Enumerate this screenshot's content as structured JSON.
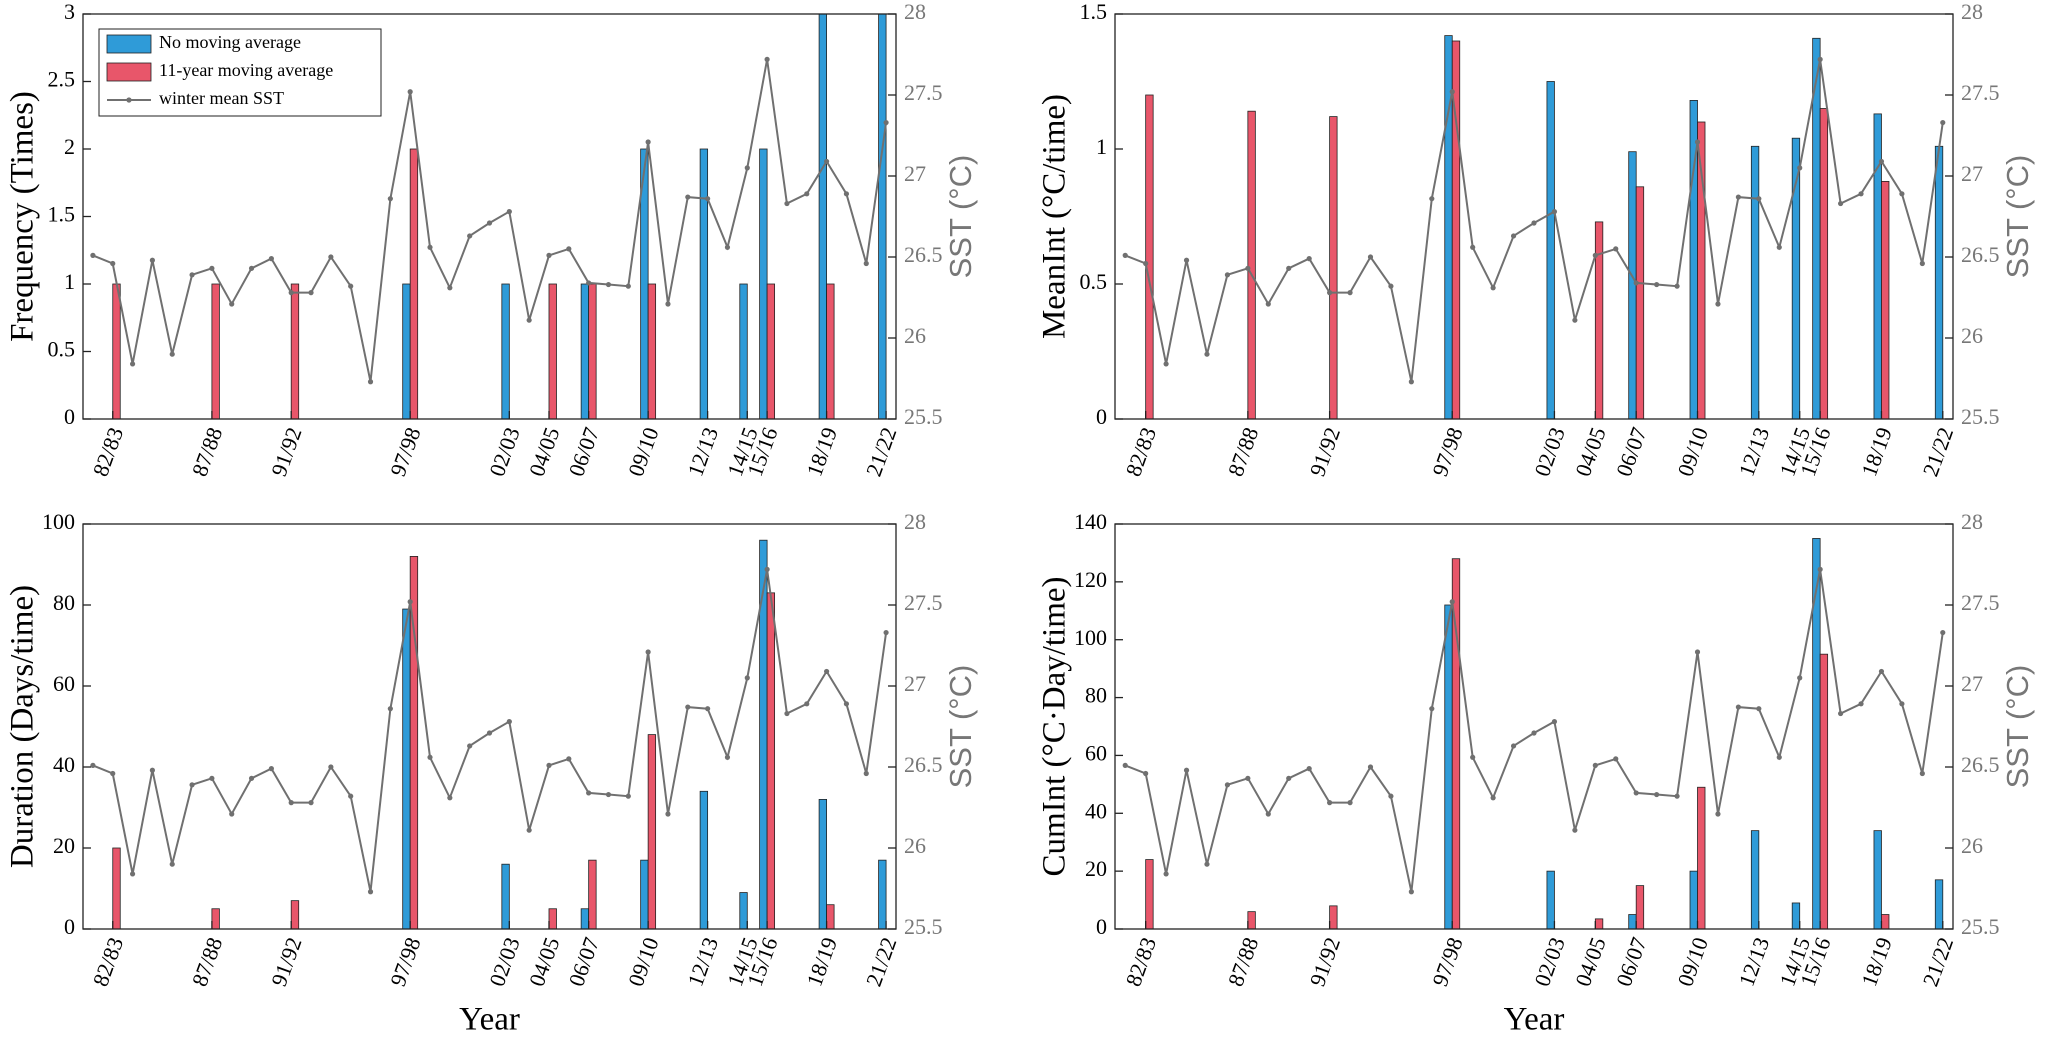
{
  "chart_data": [
    {
      "type": "bar",
      "ylabel": "Frequency (Times)",
      "y2label": "SST (°C)",
      "legend": "upper left",
      "categories": [
        null,
        "82/83",
        null,
        null,
        null,
        null,
        "87/88",
        null,
        null,
        null,
        "91/92",
        null,
        null,
        null,
        null,
        null,
        "97/98",
        null,
        null,
        null,
        null,
        "02/03",
        null,
        "04/05",
        null,
        "06/07",
        null,
        null,
        "09/10",
        null,
        null,
        "12/13",
        null,
        "14/15",
        "15/16",
        null,
        null,
        "18/19",
        null,
        null,
        "21/22"
      ],
      "series": [
        {
          "name": "No moving average",
          "color": "#2f9bd8",
          "values": [
            null,
            null,
            null,
            null,
            null,
            null,
            null,
            null,
            null,
            null,
            null,
            null,
            null,
            null,
            null,
            null,
            1,
            null,
            null,
            null,
            null,
            1,
            null,
            null,
            null,
            1,
            null,
            null,
            2,
            null,
            null,
            2,
            null,
            1,
            2,
            null,
            null,
            3,
            null,
            null,
            3
          ]
        },
        {
          "name": "11-year moving average",
          "color": "#e8566a",
          "values": [
            null,
            1,
            null,
            null,
            null,
            null,
            1,
            null,
            null,
            null,
            1,
            null,
            null,
            null,
            null,
            null,
            2,
            null,
            null,
            null,
            null,
            null,
            null,
            1,
            null,
            1,
            null,
            null,
            1,
            null,
            null,
            null,
            null,
            null,
            1,
            null,
            null,
            1,
            null,
            null,
            null
          ]
        },
        {
          "name": "winter mean SST",
          "color": "#707070",
          "type": "line",
          "axis": "y2",
          "values": [
            26.51,
            26.46,
            25.84,
            26.48,
            25.9,
            26.39,
            26.43,
            26.21,
            26.43,
            26.49,
            26.28,
            26.28,
            26.5,
            26.32,
            25.73,
            26.86,
            27.52,
            26.56,
            26.31,
            26.63,
            26.71,
            26.78,
            26.11,
            26.51,
            26.55,
            26.34,
            26.33,
            26.32,
            27.21,
            26.21,
            26.87,
            26.86,
            26.56,
            27.05,
            27.72,
            26.83,
            26.89,
            27.09,
            26.89,
            26.46,
            27.33
          ]
        }
      ],
      "ylim": [
        0,
        3
      ],
      "yticks": [
        0,
        0.5,
        1,
        1.5,
        2,
        2.5,
        3
      ],
      "y2lim": [
        25.5,
        28
      ],
      "y2ticks": [
        25.5,
        26,
        26.5,
        27,
        27.5,
        28
      ]
    },
    {
      "type": "bar",
      "ylabel": "MeanInt (°C/time)",
      "y2label": "SST (°C)",
      "categories": [
        null,
        "82/83",
        null,
        null,
        null,
        null,
        "87/88",
        null,
        null,
        null,
        "91/92",
        null,
        null,
        null,
        null,
        null,
        "97/98",
        null,
        null,
        null,
        null,
        "02/03",
        null,
        "04/05",
        null,
        "06/07",
        null,
        null,
        "09/10",
        null,
        null,
        "12/13",
        null,
        "14/15",
        "15/16",
        null,
        null,
        "18/19",
        null,
        null,
        "21/22"
      ],
      "series": [
        {
          "color": "#2f9bd8",
          "values": [
            null,
            null,
            null,
            null,
            null,
            null,
            null,
            null,
            null,
            null,
            null,
            null,
            null,
            null,
            null,
            null,
            1.42,
            null,
            null,
            null,
            null,
            1.25,
            null,
            null,
            null,
            0.99,
            null,
            null,
            1.18,
            null,
            null,
            1.01,
            null,
            1.04,
            1.41,
            null,
            null,
            1.13,
            null,
            null,
            1.01
          ]
        },
        {
          "color": "#e8566a",
          "values": [
            null,
            1.2,
            null,
            null,
            null,
            null,
            1.14,
            null,
            null,
            null,
            1.12,
            null,
            null,
            null,
            null,
            null,
            1.4,
            null,
            null,
            null,
            null,
            null,
            null,
            0.73,
            null,
            0.86,
            null,
            null,
            1.1,
            null,
            null,
            null,
            null,
            null,
            1.15,
            null,
            null,
            0.88,
            null,
            null,
            null
          ]
        },
        {
          "color": "#707070",
          "type": "line",
          "axis": "y2",
          "values": [
            26.51,
            26.46,
            25.84,
            26.48,
            25.9,
            26.39,
            26.43,
            26.21,
            26.43,
            26.49,
            26.28,
            26.28,
            26.5,
            26.32,
            25.73,
            26.86,
            27.52,
            26.56,
            26.31,
            26.63,
            26.71,
            26.78,
            26.11,
            26.51,
            26.55,
            26.34,
            26.33,
            26.32,
            27.21,
            26.21,
            26.87,
            26.86,
            26.56,
            27.05,
            27.72,
            26.83,
            26.89,
            27.09,
            26.89,
            26.46,
            27.33
          ]
        }
      ],
      "ylim": [
        0,
        1.5
      ],
      "yticks": [
        0,
        0.5,
        1,
        1.5
      ],
      "y2lim": [
        25.5,
        28
      ],
      "y2ticks": [
        25.5,
        26,
        26.5,
        27,
        27.5,
        28
      ]
    },
    {
      "type": "bar",
      "ylabel": "Duration (Days/time)",
      "y2label": "SST (°C)",
      "xlabel": "Year",
      "categories": [
        null,
        "82/83",
        null,
        null,
        null,
        null,
        "87/88",
        null,
        null,
        null,
        "91/92",
        null,
        null,
        null,
        null,
        null,
        "97/98",
        null,
        null,
        null,
        null,
        "02/03",
        null,
        "04/05",
        null,
        "06/07",
        null,
        null,
        "09/10",
        null,
        null,
        "12/13",
        null,
        "14/15",
        "15/16",
        null,
        null,
        "18/19",
        null,
        null,
        "21/22"
      ],
      "series": [
        {
          "color": "#2f9bd8",
          "values": [
            null,
            null,
            null,
            null,
            null,
            null,
            null,
            null,
            null,
            null,
            null,
            null,
            null,
            null,
            null,
            null,
            79,
            null,
            null,
            null,
            null,
            16,
            null,
            null,
            null,
            5,
            null,
            null,
            17,
            null,
            null,
            34,
            null,
            9,
            96,
            null,
            null,
            32,
            null,
            null,
            17
          ]
        },
        {
          "color": "#e8566a",
          "values": [
            null,
            20,
            null,
            null,
            null,
            null,
            5,
            null,
            null,
            null,
            7,
            null,
            null,
            null,
            null,
            null,
            92,
            null,
            null,
            null,
            null,
            null,
            null,
            5,
            null,
            17,
            null,
            null,
            48,
            null,
            null,
            null,
            null,
            null,
            83,
            null,
            null,
            6,
            null,
            null,
            null
          ]
        },
        {
          "color": "#707070",
          "type": "line",
          "axis": "y2",
          "values": [
            26.51,
            26.46,
            25.84,
            26.48,
            25.9,
            26.39,
            26.43,
            26.21,
            26.43,
            26.49,
            26.28,
            26.28,
            26.5,
            26.32,
            25.73,
            26.86,
            27.52,
            26.56,
            26.31,
            26.63,
            26.71,
            26.78,
            26.11,
            26.51,
            26.55,
            26.34,
            26.33,
            26.32,
            27.21,
            26.21,
            26.87,
            26.86,
            26.56,
            27.05,
            27.72,
            26.83,
            26.89,
            27.09,
            26.89,
            26.46,
            27.33
          ]
        }
      ],
      "ylim": [
        0,
        100
      ],
      "yticks": [
        0,
        20,
        40,
        60,
        80,
        100
      ],
      "y2lim": [
        25.5,
        28
      ],
      "y2ticks": [
        25.5,
        26,
        26.5,
        27,
        27.5,
        28
      ]
    },
    {
      "type": "bar",
      "ylabel": "CumInt (°C·Day/time)",
      "y2label": "SST (°C)",
      "xlabel": "Year",
      "categories": [
        null,
        "82/83",
        null,
        null,
        null,
        null,
        "87/88",
        null,
        null,
        null,
        "91/92",
        null,
        null,
        null,
        null,
        null,
        "97/98",
        null,
        null,
        null,
        null,
        "02/03",
        null,
        "04/05",
        null,
        "06/07",
        null,
        null,
        "09/10",
        null,
        null,
        "12/13",
        null,
        "14/15",
        "15/16",
        null,
        null,
        "18/19",
        null,
        null,
        "21/22"
      ],
      "series": [
        {
          "color": "#2f9bd8",
          "values": [
            null,
            null,
            null,
            null,
            null,
            null,
            null,
            null,
            null,
            null,
            null,
            null,
            null,
            null,
            null,
            null,
            112,
            null,
            null,
            null,
            null,
            20,
            null,
            null,
            null,
            5,
            null,
            null,
            20,
            null,
            null,
            34,
            null,
            9,
            135,
            null,
            null,
            34,
            null,
            null,
            17
          ]
        },
        {
          "color": "#e8566a",
          "values": [
            null,
            24,
            null,
            null,
            null,
            null,
            6,
            null,
            null,
            null,
            8,
            null,
            null,
            null,
            null,
            null,
            128,
            null,
            null,
            null,
            null,
            null,
            null,
            3.5,
            null,
            15,
            null,
            null,
            49,
            null,
            null,
            null,
            null,
            null,
            95,
            null,
            null,
            5,
            null,
            null,
            null
          ]
        },
        {
          "color": "#707070",
          "type": "line",
          "axis": "y2",
          "values": [
            26.51,
            26.46,
            25.84,
            26.48,
            25.9,
            26.39,
            26.43,
            26.21,
            26.43,
            26.49,
            26.28,
            26.28,
            26.5,
            26.32,
            25.73,
            26.86,
            27.52,
            26.56,
            26.31,
            26.63,
            26.71,
            26.78,
            26.11,
            26.51,
            26.55,
            26.34,
            26.33,
            26.32,
            27.21,
            26.21,
            26.87,
            26.86,
            26.56,
            27.05,
            27.72,
            26.83,
            26.89,
            27.09,
            26.89,
            26.46,
            27.33
          ]
        }
      ],
      "ylim": [
        0,
        140
      ],
      "yticks": [
        0,
        20,
        40,
        60,
        80,
        100,
        120,
        140
      ],
      "y2lim": [
        25.5,
        28
      ],
      "y2ticks": [
        25.5,
        26,
        26.5,
        27,
        27.5,
        28
      ]
    }
  ]
}
